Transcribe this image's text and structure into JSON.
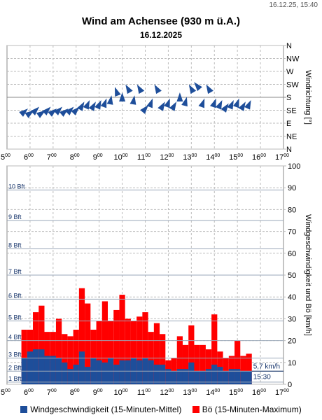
{
  "header": {
    "timestamp": "16.12.25, 15:40",
    "title": "Wind am Achensee (930 m ü.A.)",
    "subtitle": "16.12.2025"
  },
  "colors": {
    "speed": "#1e4e9a",
    "gust": "#ff0000",
    "arrow": "#1e4e9a",
    "grid": "#aaaaaa",
    "bft": "#17356b"
  },
  "legend": {
    "speed_label": "Windgeschwindigkeit (15-Minuten-Mittel)",
    "gust_label": "Bö (15-Minuten-Maximum)"
  },
  "chart_data": [
    {
      "type": "scatter",
      "marker": "wind-direction-arrow",
      "ylabel": "Windrichtung [°]",
      "x_ticks": [
        "5",
        "6",
        "7",
        "8",
        "9",
        "10",
        "11",
        "12",
        "13",
        "14",
        "15",
        "16",
        "17"
      ],
      "x_tick_suffix": "00",
      "xlim": [
        5,
        17
      ],
      "y_categories": [
        "N",
        "NW",
        "W",
        "SW",
        "S",
        "SE",
        "E",
        "NE",
        "N"
      ],
      "ylim": [
        360,
        0
      ],
      "grid": true,
      "x": [
        5.75,
        6.0,
        6.25,
        6.5,
        6.75,
        7.0,
        7.25,
        7.5,
        7.75,
        8.0,
        8.25,
        8.5,
        8.75,
        9.0,
        9.25,
        9.5,
        9.75,
        10.0,
        10.25,
        10.5,
        10.75,
        11.0,
        11.25,
        11.5,
        11.75,
        12.0,
        12.25,
        12.5,
        12.75,
        13.0,
        13.25,
        13.5,
        13.75,
        14.0,
        14.25,
        14.5,
        14.75,
        15.0,
        15.25,
        15.5
      ],
      "direction_deg": [
        230,
        235,
        225,
        235,
        225,
        230,
        225,
        230,
        225,
        225,
        210,
        205,
        210,
        205,
        200,
        190,
        160,
        180,
        150,
        190,
        150,
        220,
        200,
        150,
        210,
        200,
        210,
        180,
        195,
        150,
        140,
        200,
        150,
        200,
        205,
        215,
        205,
        200,
        210,
        205
      ]
    },
    {
      "type": "bar",
      "ylabel": "Windgeschwindigkeit und Bö [km/h]",
      "x_ticks": [
        "5",
        "6",
        "7",
        "8",
        "9",
        "10",
        "11",
        "12",
        "13",
        "14",
        "15",
        "16",
        "17"
      ],
      "x_tick_suffix": "00",
      "xlim": [
        5,
        17
      ],
      "ylim": [
        0,
        100
      ],
      "y_ticks": [
        0,
        10,
        20,
        30,
        40,
        50,
        60,
        70,
        80,
        90,
        100
      ],
      "grid": true,
      "beaufort": [
        {
          "label": "1 Bft",
          "km_h": 1
        },
        {
          "label": "2 Bft",
          "km_h": 6
        },
        {
          "label": "3 Bft",
          "km_h": 12
        },
        {
          "label": "4 Bft",
          "km_h": 20
        },
        {
          "label": "5 Bft",
          "km_h": 29
        },
        {
          "label": "6 Bft",
          "km_h": 39
        },
        {
          "label": "7 Bft",
          "km_h": 50
        },
        {
          "label": "8 Bft",
          "km_h": 62
        },
        {
          "label": "9 Bft",
          "km_h": 75
        },
        {
          "label": "10 Bft",
          "km_h": 89
        }
      ],
      "x": [
        5.75,
        6.0,
        6.25,
        6.5,
        6.75,
        7.0,
        7.25,
        7.5,
        7.75,
        8.0,
        8.25,
        8.5,
        8.75,
        9.0,
        9.25,
        9.5,
        9.75,
        10.0,
        10.25,
        10.5,
        10.75,
        11.0,
        11.25,
        11.5,
        11.75,
        12.0,
        12.25,
        12.5,
        12.75,
        13.0,
        13.25,
        13.5,
        13.75,
        14.0,
        14.25,
        14.5,
        14.75,
        15.0,
        15.25,
        15.5
      ],
      "series": [
        {
          "name": "Windgeschwindigkeit (15-Minuten-Mittel)",
          "values": [
            12,
            15,
            16,
            16,
            13,
            13,
            12,
            10,
            7,
            9,
            15,
            8,
            12,
            11,
            10,
            12,
            9,
            11,
            11,
            12,
            11,
            12,
            11,
            9,
            9,
            7,
            6,
            7,
            7,
            10,
            6,
            6,
            7,
            9,
            8,
            6,
            7,
            7,
            6,
            6
          ]
        },
        {
          "name": "Bö (15-Minuten-Maximum)",
          "values": [
            25,
            25,
            33,
            36,
            24,
            24,
            30,
            23,
            22,
            25,
            44,
            37,
            25,
            29,
            38,
            29,
            34,
            41,
            30,
            29,
            31,
            33,
            24,
            28,
            23,
            11,
            12,
            22,
            18,
            27,
            18,
            18,
            16,
            32,
            15,
            12,
            13,
            20,
            13,
            14
          ]
        }
      ],
      "annotation": {
        "speed_label": "5,7 km/h",
        "time_label": "15:30"
      }
    }
  ]
}
